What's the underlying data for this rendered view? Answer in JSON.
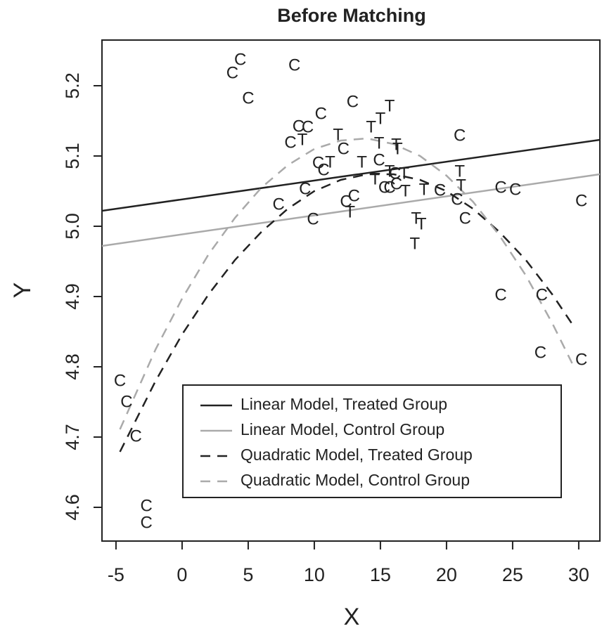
{
  "chart_data": {
    "type": "scatter",
    "title": "Before Matching",
    "x_label": "X",
    "y_label": "Y",
    "xlim": [
      -6.06,
      31.6
    ],
    "ylim": [
      4.552,
      5.265
    ],
    "xticks": [
      -5,
      0,
      5,
      10,
      15,
      20,
      25,
      30
    ],
    "yticks": [
      4.6,
      4.7,
      4.8,
      4.9,
      {
        "value": 5,
        "label": "5.0"
      },
      5.1,
      5.2
    ],
    "points": [
      {
        "marker": "C",
        "color": "#222222",
        "x": [
          4.4,
          3.8,
          8.5,
          5.0,
          12.9,
          10.5,
          9.5,
          8.8,
          8.2,
          12.2,
          10.3,
          10.7,
          14.9,
          21.0,
          9.3,
          7.3,
          12.4,
          13.0,
          9.9,
          15.3,
          15.7,
          16.2,
          19.5,
          20.8,
          21.4,
          24.1,
          25.2,
          30.2,
          24.1,
          27.2,
          27.1,
          30.2,
          -4.7,
          -4.2,
          -3.5,
          -2.7,
          -2.7,
          16.1
        ],
        "y": [
          5.236,
          5.217,
          5.228,
          5.181,
          5.176,
          5.159,
          5.14,
          5.141,
          5.118,
          5.109,
          5.089,
          5.079,
          5.093,
          5.128,
          5.052,
          5.03,
          5.034,
          5.042,
          5.009,
          5.054,
          5.054,
          5.059,
          5.05,
          5.037,
          5.01,
          5.054,
          5.051,
          5.035,
          4.901,
          4.901,
          4.819,
          4.809,
          4.779,
          4.749,
          4.7,
          4.601,
          4.577,
          5.074
        ]
      },
      {
        "marker": "T",
        "color": "#222222",
        "x": [
          11.8,
          14.3,
          15.0,
          15.7,
          9.1,
          14.9,
          16.2,
          16.3,
          13.6,
          14.6,
          16.9,
          18.3,
          17.7,
          18.1,
          17.6,
          21.0,
          21.1,
          12.7,
          11.2,
          15.7,
          16.8
        ],
        "y": [
          5.129,
          5.14,
          5.152,
          5.17,
          5.122,
          5.117,
          5.115,
          5.109,
          5.09,
          5.066,
          5.049,
          5.051,
          5.01,
          5.002,
          4.974,
          5.077,
          5.057,
          5.019,
          5.09,
          5.077,
          5.074
        ]
      }
    ],
    "lines": [
      {
        "name": "Linear Model, Treated Group",
        "color": "#222222",
        "dashed": false,
        "x": [
          -6.06,
          31.6
        ],
        "y": [
          5.022,
          5.123
        ]
      },
      {
        "name": "Linear Model, Control Group",
        "color": "#aaaaaa",
        "dashed": false,
        "x": [
          -6.06,
          31.6
        ],
        "y": [
          4.972,
          5.074
        ]
      },
      {
        "name": "Quadratic Model, Treated Group",
        "color": "#222222",
        "dashed": true,
        "x": [
          -4.7,
          -2,
          0,
          2,
          4,
          6,
          8,
          10,
          12,
          14,
          16,
          18,
          20,
          22,
          24,
          26,
          28,
          29.5
        ],
        "y": [
          4.679,
          4.78,
          4.846,
          4.903,
          4.952,
          4.992,
          5.025,
          5.05,
          5.066,
          5.074,
          5.074,
          5.066,
          5.05,
          5.025,
          4.992,
          4.952,
          4.903,
          4.861
        ]
      },
      {
        "name": "Quadratic Model, Control Group",
        "color": "#aaaaaa",
        "dashed": true,
        "x": [
          -4.7,
          -2,
          0,
          2,
          4,
          6,
          8,
          10,
          12,
          14,
          16,
          18,
          20,
          22,
          24,
          26,
          28,
          29.5
        ],
        "y": [
          4.711,
          4.825,
          4.897,
          4.96,
          5.012,
          5.055,
          5.087,
          5.11,
          5.122,
          5.125,
          5.117,
          5.1,
          5.072,
          5.035,
          4.987,
          4.93,
          4.862,
          4.805
        ]
      }
    ]
  }
}
